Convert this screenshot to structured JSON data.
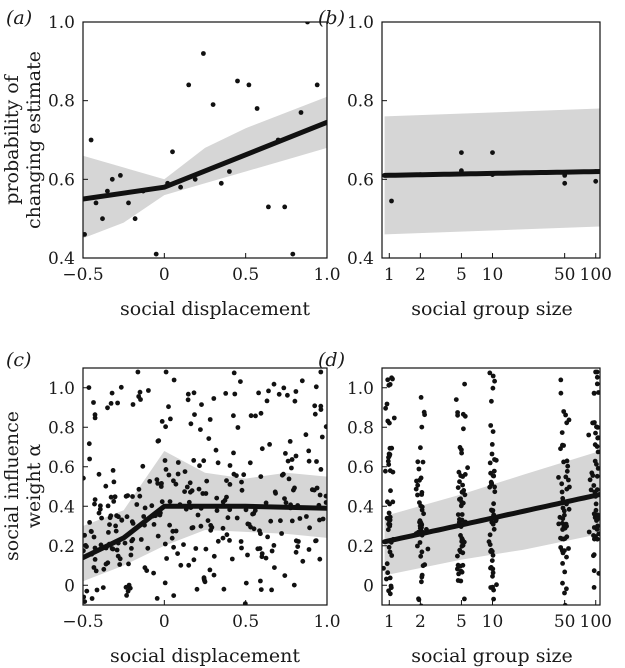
{
  "chart_data": [
    {
      "panel": "(a)",
      "type": "scatter",
      "xlabel": "social displacement",
      "ylabel_lines": [
        "probability of",
        "changing estimate"
      ],
      "xlim": [
        -0.5,
        1.0
      ],
      "ylim": [
        0.4,
        1.0
      ],
      "x_scale": "linear",
      "xticks": [
        -0.5,
        0,
        0.5,
        1.0
      ],
      "xtick_labels": [
        "−0.5",
        "0",
        "0.5",
        "1.0"
      ],
      "yticks": [
        0.4,
        0.6,
        0.8,
        1.0
      ],
      "ytick_labels": [
        "0.4",
        "0.6",
        "0.8",
        "1.0"
      ],
      "points": [
        [
          -0.49,
          0.46
        ],
        [
          -0.45,
          0.7
        ],
        [
          -0.42,
          0.54
        ],
        [
          -0.38,
          0.5
        ],
        [
          -0.35,
          0.57
        ],
        [
          -0.32,
          0.6
        ],
        [
          -0.27,
          0.61
        ],
        [
          -0.22,
          0.54
        ],
        [
          -0.18,
          0.5
        ],
        [
          -0.13,
          0.57
        ],
        [
          -0.05,
          0.41
        ],
        [
          0.02,
          0.59
        ],
        [
          0.05,
          0.67
        ],
        [
          0.1,
          0.58
        ],
        [
          0.15,
          0.84
        ],
        [
          0.19,
          0.6
        ],
        [
          0.24,
          0.92
        ],
        [
          0.3,
          0.79
        ],
        [
          0.35,
          0.59
        ],
        [
          0.4,
          0.62
        ],
        [
          0.45,
          0.85
        ],
        [
          0.52,
          0.84
        ],
        [
          0.57,
          0.78
        ],
        [
          0.64,
          0.53
        ],
        [
          0.7,
          0.7
        ],
        [
          0.74,
          0.53
        ],
        [
          0.79,
          0.41
        ],
        [
          0.84,
          0.77
        ],
        [
          0.88,
          1.0
        ],
        [
          0.94,
          0.84
        ]
      ],
      "fit_line": [
        [
          -0.5,
          0.55
        ],
        [
          0.0,
          0.58
        ],
        [
          1.0,
          0.745
        ]
      ],
      "band_upper": [
        [
          -0.5,
          0.66
        ],
        [
          -0.25,
          0.63
        ],
        [
          0.0,
          0.6
        ],
        [
          0.25,
          0.68
        ],
        [
          0.5,
          0.73
        ],
        [
          0.75,
          0.77
        ],
        [
          1.0,
          0.81
        ]
      ],
      "band_lower": [
        [
          -0.5,
          0.45
        ],
        [
          -0.25,
          0.49
        ],
        [
          0.0,
          0.56
        ],
        [
          0.25,
          0.59
        ],
        [
          0.5,
          0.62
        ],
        [
          0.75,
          0.65
        ],
        [
          1.0,
          0.68
        ]
      ]
    },
    {
      "panel": "(b)",
      "type": "scatter",
      "xlabel": "social group size",
      "xlim": [
        0.85,
        110
      ],
      "ylim": [
        0.4,
        1.0
      ],
      "x_scale": "log",
      "xticks": [
        1,
        2,
        5,
        10,
        50,
        100
      ],
      "xtick_labels": [
        "1",
        "2",
        "5",
        "10",
        "50",
        "100"
      ],
      "yticks": [
        0.4,
        0.6,
        0.8,
        1.0
      ],
      "ytick_labels": [
        "0.4",
        "0.6",
        "0.8",
        "1.0"
      ],
      "points": [
        [
          1.05,
          0.545
        ],
        [
          2.0,
          0.612
        ],
        [
          5.0,
          0.668
        ],
        [
          5.0,
          0.622
        ],
        [
          10.0,
          0.668
        ],
        [
          10.0,
          0.612
        ],
        [
          50.0,
          0.59
        ],
        [
          50.0,
          0.61
        ],
        [
          100.0,
          0.595
        ],
        [
          100.0,
          0.62
        ]
      ],
      "fit_line": [
        [
          0.9,
          0.61
        ],
        [
          110,
          0.62
        ]
      ],
      "band_upper": [
        [
          0.9,
          0.76
        ],
        [
          110,
          0.78
        ]
      ],
      "band_lower": [
        [
          0.9,
          0.46
        ],
        [
          110,
          0.48
        ]
      ]
    },
    {
      "panel": "(c)",
      "type": "scatter",
      "xlabel": "social displacement",
      "ylabel_lines": [
        "social influence",
        "weight α"
      ],
      "xlim": [
        -0.5,
        1.0
      ],
      "ylim": [
        -0.1,
        1.1
      ],
      "x_scale": "linear",
      "xticks": [
        -0.5,
        0,
        0.5,
        1.0
      ],
      "xtick_labels": [
        "−0.5",
        "0",
        "0.5",
        "1.0"
      ],
      "yticks": [
        0,
        0.2,
        0.4,
        0.6,
        0.8,
        1.0
      ],
      "ytick_labels": [
        "0",
        "0.2",
        "0.4",
        "0.6",
        "0.8",
        "1.0"
      ],
      "n_points": 340,
      "seed": 7,
      "fit_line": [
        [
          -0.5,
          0.14
        ],
        [
          -0.25,
          0.24
        ],
        [
          0.0,
          0.4
        ],
        [
          0.5,
          0.4
        ],
        [
          1.0,
          0.39
        ]
      ],
      "band_upper": [
        [
          -0.5,
          0.3
        ],
        [
          -0.25,
          0.38
        ],
        [
          0.0,
          0.68
        ],
        [
          0.25,
          0.57
        ],
        [
          0.5,
          0.54
        ],
        [
          0.75,
          0.57
        ],
        [
          1.0,
          0.55
        ]
      ],
      "band_lower": [
        [
          -0.5,
          0.02
        ],
        [
          -0.25,
          0.1
        ],
        [
          0.0,
          0.2
        ],
        [
          0.25,
          0.28
        ],
        [
          0.5,
          0.27
        ],
        [
          0.75,
          0.26
        ],
        [
          1.0,
          0.24
        ]
      ]
    },
    {
      "panel": "(d)",
      "type": "scatter",
      "xlabel": "social group size",
      "xlim": [
        0.85,
        110
      ],
      "ylim": [
        -0.1,
        1.1
      ],
      "x_scale": "log",
      "xticks": [
        1,
        2,
        5,
        10,
        50,
        100
      ],
      "xtick_labels": [
        "1",
        "2",
        "5",
        "10",
        "50",
        "100"
      ],
      "yticks": [
        0,
        0.2,
        0.4,
        0.6,
        0.8,
        1.0
      ],
      "ytick_labels": [
        "0",
        "0.2",
        "0.4",
        "0.6",
        "0.8",
        "1.0"
      ],
      "group_sizes": [
        1,
        2,
        5,
        10,
        50,
        100
      ],
      "points_per_group": 55,
      "seed": 13,
      "fit_line": [
        [
          0.9,
          0.22
        ],
        [
          110,
          0.46
        ]
      ],
      "band_upper": [
        [
          0.9,
          0.35
        ],
        [
          5,
          0.46
        ],
        [
          20,
          0.56
        ],
        [
          110,
          0.68
        ]
      ],
      "band_lower": [
        [
          0.9,
          0.05
        ],
        [
          5,
          0.13
        ],
        [
          20,
          0.18
        ],
        [
          110,
          0.26
        ]
      ]
    }
  ]
}
